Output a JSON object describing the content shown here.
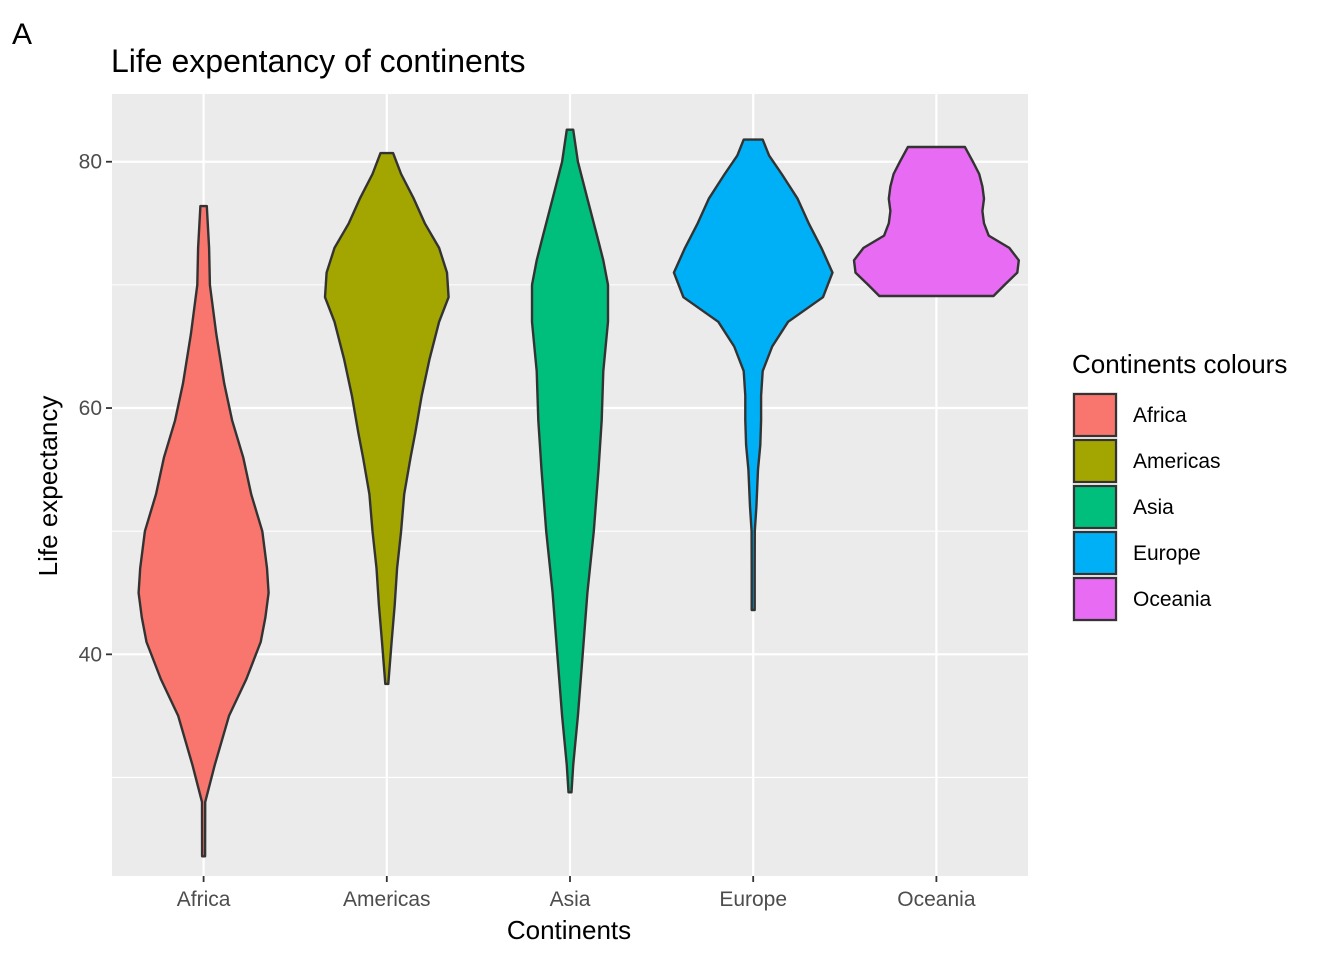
{
  "panel_label": "A",
  "chart_data": {
    "type": "violin",
    "title": "Life expentancy of continents",
    "xlabel": "Continents",
    "ylabel": "Life expectancy",
    "ylim": [
      22,
      85.5
    ],
    "yticks": [
      40,
      60,
      80
    ],
    "grid": true,
    "legend_title": "Continents colours",
    "legend_position": "right",
    "categories": [
      "Africa",
      "Americas",
      "Asia",
      "Europe",
      "Oceania"
    ],
    "series": [
      {
        "name": "Africa",
        "color": "#F8766D",
        "min": 23.6,
        "max": 76.4,
        "density": [
          [
            23.6,
            0.0
          ],
          [
            28,
            0.01
          ],
          [
            31,
            0.07
          ],
          [
            35,
            0.16
          ],
          [
            38,
            0.27
          ],
          [
            41,
            0.36
          ],
          [
            43,
            0.39
          ],
          [
            45,
            0.41
          ],
          [
            47,
            0.4
          ],
          [
            50,
            0.37
          ],
          [
            53,
            0.3
          ],
          [
            56,
            0.25
          ],
          [
            59,
            0.18
          ],
          [
            62,
            0.13
          ],
          [
            66,
            0.08
          ],
          [
            70,
            0.04
          ],
          [
            73,
            0.035
          ],
          [
            76.4,
            0.02
          ]
        ]
      },
      {
        "name": "Americas",
        "color": "#A3A500",
        "min": 37.6,
        "max": 80.7,
        "density": [
          [
            37.6,
            0.0
          ],
          [
            41,
            0.03
          ],
          [
            44,
            0.05
          ],
          [
            47,
            0.065
          ],
          [
            50,
            0.09
          ],
          [
            53,
            0.11
          ],
          [
            56,
            0.15
          ],
          [
            58,
            0.18
          ],
          [
            61,
            0.22
          ],
          [
            64,
            0.27
          ],
          [
            67,
            0.33
          ],
          [
            69,
            0.39
          ],
          [
            71,
            0.38
          ],
          [
            73,
            0.33
          ],
          [
            75,
            0.24
          ],
          [
            77,
            0.17
          ],
          [
            79,
            0.09
          ],
          [
            80.7,
            0.04
          ]
        ]
      },
      {
        "name": "Asia",
        "color": "#00BF7D",
        "min": 28.8,
        "max": 82.6,
        "density": [
          [
            28.8,
            0.0
          ],
          [
            31,
            0.02
          ],
          [
            35,
            0.05
          ],
          [
            40,
            0.08
          ],
          [
            45,
            0.11
          ],
          [
            50,
            0.15
          ],
          [
            55,
            0.18
          ],
          [
            59,
            0.2
          ],
          [
            63,
            0.21
          ],
          [
            67,
            0.24
          ],
          [
            70,
            0.24
          ],
          [
            72,
            0.21
          ],
          [
            74,
            0.17
          ],
          [
            77,
            0.11
          ],
          [
            80,
            0.05
          ],
          [
            82.6,
            0.02
          ]
        ]
      },
      {
        "name": "Europe",
        "color": "#00B0F6",
        "min": 43.6,
        "max": 81.8,
        "density": [
          [
            43.6,
            0.0
          ],
          [
            47,
            0.005
          ],
          [
            50,
            0.01
          ],
          [
            52,
            0.02
          ],
          [
            55,
            0.03
          ],
          [
            57,
            0.045
          ],
          [
            59,
            0.05
          ],
          [
            61,
            0.05
          ],
          [
            63,
            0.06
          ],
          [
            65,
            0.12
          ],
          [
            67,
            0.22
          ],
          [
            69,
            0.44
          ],
          [
            71,
            0.5
          ],
          [
            73,
            0.43
          ],
          [
            75,
            0.35
          ],
          [
            77,
            0.28
          ],
          [
            79,
            0.18
          ],
          [
            80.5,
            0.1
          ],
          [
            81.8,
            0.06
          ]
        ]
      },
      {
        "name": "Oceania",
        "color": "#E76BF3",
        "min": 69.1,
        "max": 81.2,
        "density": [
          [
            69.1,
            0.36
          ],
          [
            70,
            0.43
          ],
          [
            71,
            0.51
          ],
          [
            72,
            0.52
          ],
          [
            73,
            0.46
          ],
          [
            74,
            0.33
          ],
          [
            75,
            0.3
          ],
          [
            76,
            0.29
          ],
          [
            77,
            0.3
          ],
          [
            78,
            0.29
          ],
          [
            79,
            0.27
          ],
          [
            80,
            0.23
          ],
          [
            81.2,
            0.18
          ]
        ]
      }
    ]
  }
}
